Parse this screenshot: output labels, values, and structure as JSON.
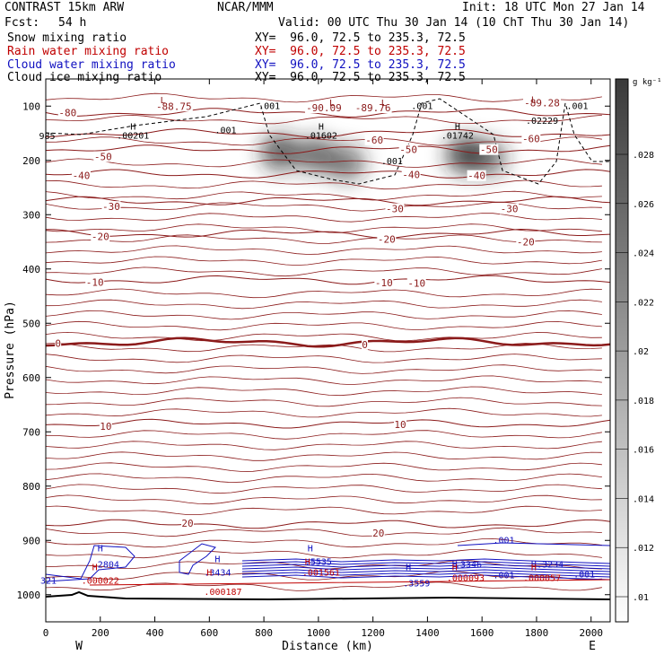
{
  "header": {
    "model": "CONTRAST 15km ARW",
    "org": "NCAR/MMM",
    "init": "Init: 18 UTC Mon 27 Jan 14",
    "fcst_label": "Fcst:",
    "fcst_value": "54 h",
    "valid": "Valid: 00 UTC Thu 30 Jan 14 (10 ChT Thu 30 Jan 14)"
  },
  "fields": [
    {
      "name": "Snow mixing ratio",
      "xy": "XY=  96.0, 72.5 to 235.3, 72.5",
      "color": "#000000"
    },
    {
      "name": "Rain water mixing ratio",
      "xy": "XY=  96.0, 72.5 to 235.3, 72.5",
      "color": "#c00000"
    },
    {
      "name": "Cloud water mixing ratio",
      "xy": "XY=  96.0, 72.5 to 235.3, 72.5",
      "color": "#1010c0"
    },
    {
      "name": "Cloud ice mixing ratio",
      "xy": "XY=  96.0, 72.5 to 235.3, 72.5",
      "color": "#000000"
    }
  ],
  "chart_data": {
    "type": "contour",
    "xlabel": "Distance (km)",
    "ylabel": "Pressure (hPa)",
    "xlim": [
      0,
      2070
    ],
    "ylim": [
      1050,
      50
    ],
    "x_ticks": [
      0,
      200,
      400,
      600,
      800,
      1000,
      1200,
      1400,
      1600,
      1800,
      2000
    ],
    "y_ticks": [
      100,
      200,
      300,
      400,
      500,
      600,
      700,
      800,
      900,
      1000
    ],
    "x_ends": {
      "left": "W",
      "right": "E"
    },
    "colorbar": {
      "unit": "g kg⁻¹",
      "labels": [
        ".01",
        ".012",
        ".014",
        ".016",
        ".018",
        ".02",
        ".022",
        ".024",
        ".026",
        ".028"
      ]
    },
    "isotherms": [
      {
        "label": "-80",
        "p": 112
      },
      {
        "label": "-60",
        "p": 150
      },
      {
        "label": "-50",
        "p": 180
      },
      {
        "label": "-40",
        "p": 225
      },
      {
        "label": "-30",
        "p": 275
      },
      {
        "label": "-20",
        "p": 335
      },
      {
        "label": "-10",
        "p": 420
      },
      {
        "label": "0",
        "p": 535
      },
      {
        "label": "10",
        "p": 685
      },
      {
        "label": "20",
        "p": 870
      }
    ],
    "temperature_labels": [
      {
        "text": "-80",
        "x": 80,
        "p": 112
      },
      {
        "text": "-88.75",
        "x": 470,
        "p": 100
      },
      {
        "text": "-90.09",
        "x": 1020,
        "p": 103
      },
      {
        "text": "-89.76",
        "x": 1200,
        "p": 103
      },
      {
        "text": "-89.28",
        "x": 1820,
        "p": 94
      },
      {
        "text": "-60",
        "x": 1205,
        "p": 162
      },
      {
        "text": "-60",
        "x": 1780,
        "p": 160
      },
      {
        "text": "-50",
        "x": 210,
        "p": 193
      },
      {
        "text": "-50",
        "x": 1330,
        "p": 180
      },
      {
        "text": "-50",
        "x": 1625,
        "p": 180
      },
      {
        "text": "-40",
        "x": 130,
        "p": 228
      },
      {
        "text": "-40",
        "x": 1340,
        "p": 226
      },
      {
        "text": "-40",
        "x": 1580,
        "p": 228
      },
      {
        "text": "-30",
        "x": 240,
        "p": 285
      },
      {
        "text": "-30",
        "x": 1280,
        "p": 289
      },
      {
        "text": "-30",
        "x": 1700,
        "p": 289
      },
      {
        "text": "-20",
        "x": 200,
        "p": 340
      },
      {
        "text": "-20",
        "x": 1250,
        "p": 345
      },
      {
        "text": "-20",
        "x": 1760,
        "p": 350
      },
      {
        "text": "-10",
        "x": 180,
        "p": 424
      },
      {
        "text": "-10",
        "x": 1240,
        "p": 425
      },
      {
        "text": "-10",
        "x": 1360,
        "p": 426
      },
      {
        "text": "0",
        "x": 45,
        "p": 537
      },
      {
        "text": "0",
        "x": 1170,
        "p": 539
      },
      {
        "text": "10",
        "x": 220,
        "p": 690
      },
      {
        "text": "10",
        "x": 1300,
        "p": 686
      },
      {
        "text": "20",
        "x": 520,
        "p": 868
      },
      {
        "text": "20",
        "x": 1220,
        "p": 886
      }
    ],
    "maxima": [
      {
        "h": "H",
        "value": ".00201",
        "x": 320,
        "p": 160
      },
      {
        "h": "H",
        "value": ".01602",
        "x": 1010,
        "p": 160
      },
      {
        "h": "H",
        "value": ".01742",
        "x": 1510,
        "p": 160
      },
      {
        "h": "",
        "value": ".02229",
        "x": 1820,
        "p": 133
      },
      {
        "h": "",
        "value": "985",
        "x": 5,
        "p": 161
      }
    ],
    "lows": [
      {
        "x": 430,
        "p": 75
      },
      {
        "x": 1050,
        "p": 80
      },
      {
        "x": 1240,
        "p": 80
      },
      {
        "x": 1790,
        "p": 74
      }
    ],
    "contour_labels": [
      {
        "text": ".001",
        "x": 820,
        "p": 105,
        "color": "#000000"
      },
      {
        "text": ".001",
        "x": 660,
        "p": 150,
        "color": "#000000"
      },
      {
        "text": ".001",
        "x": 1270,
        "p": 207,
        "color": "#000000"
      },
      {
        "text": ".001",
        "x": 1380,
        "p": 105,
        "color": "#000000"
      },
      {
        "text": ".001",
        "x": 1950,
        "p": 105,
        "color": "#000000"
      }
    ],
    "snow_maxima": [
      {
        "x": 860,
        "p": 185,
        "amount": 0.02
      },
      {
        "x": 990,
        "p": 190,
        "amount": 0.018
      },
      {
        "x": 1100,
        "p": 205,
        "amount": 0.016
      },
      {
        "x": 1540,
        "p": 190,
        "amount": 0.022
      },
      {
        "x": 1620,
        "p": 195,
        "amount": 0.016
      }
    ],
    "cloud_water_labels": [
      {
        "text": "H",
        "x": 200,
        "p": 920
      },
      {
        "text": ".2804",
        "x": 220,
        "p": 950
      },
      {
        "text": "H",
        "x": 630,
        "p": 940
      },
      {
        "text": ".3434",
        "x": 630,
        "p": 965
      },
      {
        "text": "H",
        "x": 970,
        "p": 920
      },
      {
        "text": ".5535",
        "x": 1000,
        "p": 945
      },
      {
        "text": "H",
        "x": 1330,
        "p": 955
      },
      {
        "text": ".3559",
        "x": 1360,
        "p": 985
      },
      {
        "text": "H",
        "x": 1500,
        "p": 950
      },
      {
        "text": ".3346",
        "x": 1550,
        "p": 950
      },
      {
        "text": "H",
        "x": 1790,
        "p": 950
      },
      {
        "text": ".3234",
        "x": 1850,
        "p": 950
      },
      {
        "text": ".001",
        "x": 1680,
        "p": 905
      },
      {
        "text": ".001",
        "x": 1680,
        "p": 970
      },
      {
        "text": ".001",
        "x": 1975,
        "p": 968
      },
      {
        "text": "321",
        "x": 10,
        "p": 980
      }
    ],
    "rain_labels": [
      {
        "text": "H",
        "x": 180,
        "p": 955
      },
      {
        "text": ".000022",
        "x": 200,
        "p": 980
      },
      {
        "text": "H",
        "x": 600,
        "p": 965
      },
      {
        "text": ".000187",
        "x": 650,
        "p": 1000
      },
      {
        "text": "H",
        "x": 960,
        "p": 945
      },
      {
        "text": ".001561",
        "x": 1010,
        "p": 965
      },
      {
        "text": "H",
        "x": 1500,
        "p": 955
      },
      {
        "text": ".000093",
        "x": 1540,
        "p": 975
      },
      {
        "text": "H",
        "x": 1790,
        "p": 955
      },
      {
        "text": ".000057",
        "x": 1820,
        "p": 975
      }
    ]
  }
}
